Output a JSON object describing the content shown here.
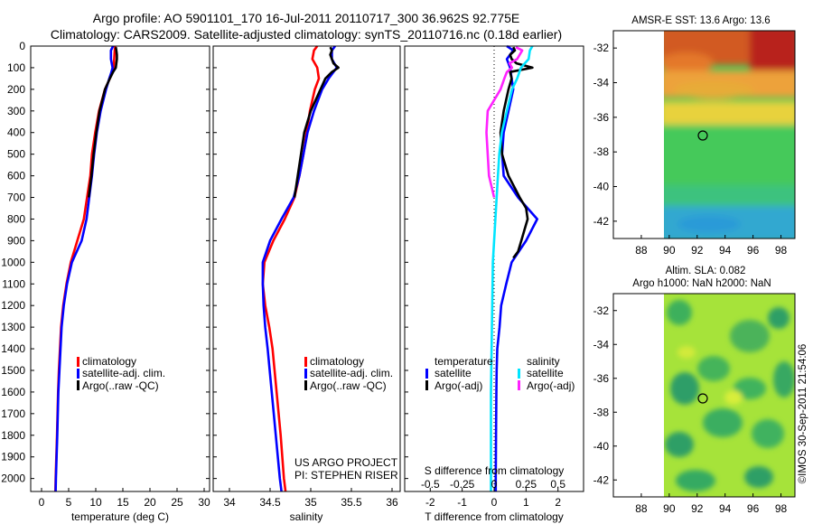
{
  "header": {
    "title_line1": "Argo profile: AO 5901101_170 16-Jul-2011 20110717_300 36.962S 92.775E",
    "title_line2": "Climatology: CARS2009. Satellite-adjusted climatology: synTS_20110716.nc (0.18d earlier)"
  },
  "colors": {
    "climatology": "#ff0000",
    "satellite": "#0000ff",
    "argo": "#000000",
    "salinity_satellite": "#00e5ff",
    "salinity_argo": "#ff22ff"
  },
  "depth_ticks": [
    "0",
    "100",
    "200",
    "300",
    "400",
    "500",
    "600",
    "700",
    "800",
    "900",
    "1000",
    "1100",
    "1200",
    "1300",
    "1400",
    "1500",
    "1600",
    "1700",
    "1800",
    "1900",
    "2000"
  ],
  "chart_data": [
    {
      "type": "line",
      "xlabel": "temperature (deg C)",
      "ylabel": "",
      "xlim": [
        -2,
        31
      ],
      "ylim": [
        2060,
        0
      ],
      "x_ticks": [
        "0",
        "5",
        "10",
        "15",
        "20",
        "25",
        "30"
      ],
      "legend": [
        "climatology",
        "satellite-adj. clim.",
        "Argo(..raw -QC)"
      ],
      "legend_position": "bottom-right",
      "series": [
        {
          "name": "climatology",
          "color": "#ff0000",
          "depth": [
            0,
            20,
            60,
            100,
            120,
            150,
            200,
            300,
            400,
            500,
            600,
            700,
            800,
            900,
            1000,
            1100,
            1200,
            1300,
            1400,
            1500,
            1600,
            1800,
            2000,
            2060
          ],
          "values": [
            13.6,
            13.5,
            13.4,
            13.3,
            13.0,
            12.6,
            11.7,
            10.6,
            9.9,
            9.3,
            9.0,
            8.4,
            7.8,
            6.6,
            5.4,
            4.6,
            4.0,
            3.6,
            3.4,
            3.2,
            3.05,
            2.85,
            2.6,
            2.55
          ]
        },
        {
          "name": "satellite-adj. clim.",
          "color": "#0000ff",
          "depth": [
            0,
            20,
            60,
            100,
            120,
            150,
            200,
            300,
            400,
            500,
            600,
            700,
            800,
            900,
            1000,
            1100,
            1200,
            1300,
            1400,
            1500,
            1600,
            1800,
            2000,
            2060
          ],
          "values": [
            13.2,
            12.8,
            12.8,
            13.1,
            12.9,
            12.5,
            11.9,
            10.9,
            10.2,
            9.7,
            9.3,
            8.8,
            8.3,
            7.4,
            5.6,
            4.7,
            4.1,
            3.7,
            3.5,
            3.3,
            3.1,
            2.9,
            2.65,
            2.6
          ]
        },
        {
          "name": "Argo(..raw -QC)",
          "color": "#000000",
          "depth": [
            5,
            20,
            40,
            60,
            80,
            100,
            120,
            150,
            200,
            300,
            400,
            500,
            600,
            700
          ],
          "values": [
            13.7,
            13.8,
            13.9,
            13.9,
            13.8,
            13.7,
            13.2,
            12.6,
            11.7,
            10.7,
            10.1,
            9.6,
            9.2,
            8.7
          ]
        }
      ]
    },
    {
      "type": "line",
      "xlabel": "salinity",
      "ylabel": "",
      "xlim": [
        33.8,
        36.1
      ],
      "ylim": [
        2060,
        0
      ],
      "x_ticks": [
        "34",
        "34.5",
        "35",
        "35.5",
        "36"
      ],
      "legend": [
        "climatology",
        "satellite-adj. clim.",
        "Argo(..raw -QC)"
      ],
      "legend_position": "bottom-right",
      "series": [
        {
          "name": "climatology",
          "color": "#ff0000",
          "depth": [
            0,
            20,
            60,
            100,
            150,
            200,
            300,
            400,
            500,
            600,
            700,
            800,
            900,
            1000,
            1100,
            1200,
            1300,
            1400,
            1600,
            1800,
            2000,
            2060
          ],
          "values": [
            35.08,
            35.04,
            35.02,
            35.08,
            35.1,
            35.05,
            34.99,
            34.95,
            34.91,
            34.86,
            34.8,
            34.68,
            34.54,
            34.43,
            34.41,
            34.44,
            34.49,
            34.53,
            34.58,
            34.63,
            34.67,
            34.69
          ]
        },
        {
          "name": "satellite-adj. clim.",
          "color": "#0000ff",
          "depth": [
            0,
            20,
            60,
            100,
            150,
            200,
            300,
            400,
            500,
            600,
            700,
            800,
            900,
            1000,
            1100,
            1200,
            1300,
            1400,
            1600,
            1800,
            2000,
            2060
          ],
          "values": [
            35.3,
            35.26,
            35.26,
            35.32,
            35.22,
            35.14,
            35.04,
            34.96,
            34.91,
            34.86,
            34.79,
            34.64,
            34.5,
            34.41,
            34.41,
            34.42,
            34.44,
            34.47,
            34.52,
            34.57,
            34.62,
            34.64
          ]
        },
        {
          "name": "Argo(..raw -QC)",
          "color": "#000000",
          "depth": [
            5,
            20,
            40,
            60,
            80,
            100,
            120,
            150,
            200,
            300,
            400,
            500,
            600,
            700
          ],
          "values": [
            35.24,
            35.26,
            35.24,
            35.26,
            35.28,
            35.34,
            35.26,
            35.18,
            35.12,
            35.0,
            34.92,
            34.88,
            34.84,
            34.8
          ]
        }
      ]
    },
    {
      "type": "line",
      "xlabel": "T difference from climatology",
      "x2label": "S difference from climatology",
      "xlim": [
        -2.8,
        2.8
      ],
      "x2lim": [
        -0.7,
        0.7
      ],
      "ylim": [
        2060,
        0
      ],
      "x_ticks": [
        "-2",
        "-1",
        "0",
        "1",
        "2"
      ],
      "x2_ticks": [
        "-0.5",
        "-0.25",
        "0",
        "0.25",
        "0.5"
      ],
      "legend_temperature_title": "temperature",
      "legend_salinity_title": "salinity",
      "legend": [
        "satellite",
        "Argo(-adj)",
        "satellite",
        "Argo(-adj)"
      ],
      "legend_position": "bottom",
      "series": [
        {
          "name": "temperature satellite",
          "color": "#0000ff",
          "axis": "T",
          "depth": [
            0,
            20,
            60,
            100,
            150,
            200,
            300,
            400,
            500,
            600,
            700,
            800,
            900,
            1000,
            1100,
            1200,
            1300,
            1400,
            1500,
            1600,
            1800,
            2000,
            2060
          ],
          "values": [
            0.4,
            0.6,
            0.4,
            0.5,
            0.55,
            0.6,
            0.45,
            0.3,
            0.25,
            0.3,
            0.75,
            1.35,
            1.0,
            0.55,
            0.38,
            0.22,
            0.17,
            0.1,
            0.08,
            0.07,
            0.06,
            0.05,
            0.05
          ]
        },
        {
          "name": "temperature Argo(-adj)",
          "color": "#000000",
          "axis": "T",
          "depth": [
            5,
            20,
            40,
            60,
            80,
            100,
            120,
            150,
            200,
            300,
            400,
            500,
            600,
            700,
            750,
            800,
            850,
            900,
            950,
            980
          ],
          "values": [
            0.6,
            0.65,
            0.5,
            0.55,
            0.7,
            1.2,
            0.5,
            0.55,
            0.45,
            0.3,
            0.2,
            0.25,
            0.45,
            0.8,
            1.0,
            1.05,
            0.95,
            0.85,
            0.75,
            0.6
          ]
        },
        {
          "name": "salinity satellite",
          "color": "#00e5ff",
          "axis": "S",
          "depth": [
            0,
            20,
            60,
            100,
            150,
            200,
            300,
            400,
            500,
            600,
            700,
            800,
            900,
            1000,
            1200,
            1400,
            1600,
            1800,
            2000,
            2060
          ],
          "values": [
            0.3,
            0.28,
            0.27,
            0.21,
            0.18,
            0.14,
            0.1,
            0.06,
            0.04,
            0.03,
            0.02,
            0.01,
            0.0,
            -0.01,
            -0.015,
            -0.02,
            -0.025,
            -0.025,
            -0.025,
            -0.025
          ]
        },
        {
          "name": "salinity Argo(-adj)",
          "color": "#ff22ff",
          "axis": "S",
          "depth": [
            5,
            20,
            40,
            60,
            80,
            100,
            120,
            150,
            200,
            300,
            400,
            500,
            600,
            700
          ],
          "values": [
            0.17,
            0.22,
            0.2,
            0.18,
            0.12,
            0.14,
            0.1,
            0.08,
            0.05,
            -0.05,
            -0.06,
            -0.05,
            -0.04,
            0.0
          ]
        }
      ]
    },
    {
      "type": "heatmap",
      "title": "AMSR-E SST: 13.6 Argo: 13.6",
      "xlim": [
        86,
        99
      ],
      "ylim": [
        -43,
        -31
      ],
      "x_ticks": [
        "88",
        "90",
        "92",
        "94",
        "96",
        "98"
      ],
      "y_ticks": [
        "-32",
        "-34",
        "-36",
        "-38",
        "-40",
        "-42"
      ],
      "data_extent_x": [
        90,
        99
      ],
      "marker": {
        "lon": 92.775,
        "lat": -36.962
      }
    },
    {
      "type": "heatmap",
      "title": "Altim. SLA: 0.082",
      "title2": "Argo h1000: NaN h2000: NaN",
      "xlim": [
        86,
        99
      ],
      "ylim": [
        -43,
        -31
      ],
      "x_ticks": [
        "88",
        "90",
        "92",
        "94",
        "96",
        "98"
      ],
      "y_ticks": [
        "-32",
        "-34",
        "-36",
        "-38",
        "-40",
        "-42"
      ],
      "data_extent_x": [
        90,
        99
      ],
      "marker": {
        "lon": 92.775,
        "lat": -36.962
      }
    }
  ],
  "labels": {
    "temperature_legend": [
      "climatology",
      "satellite-adj. clim.",
      "Argo(..raw -QC)"
    ],
    "salinity_legend": [
      "climatology",
      "satellite-adj. clim.",
      "Argo(..raw -QC)"
    ],
    "project": "US ARGO PROJECT",
    "pi": "PI: STEPHEN RISER",
    "diff_top_label": "S difference from climatology",
    "diff_legend_temperature": "temperature",
    "diff_legend_salinity": "salinity",
    "diff_legend_items": [
      "satellite",
      "Argo(-adj)",
      "satellite",
      "Argo(-adj)"
    ],
    "sst_title": "AMSR-E SST: 13.6 Argo: 13.6",
    "sla_title": "Altim. SLA: 0.082",
    "sla_title2": "Argo h1000: NaN h2000: NaN",
    "credit": "©IMOS 30-Sep-2011 21:54:06"
  }
}
